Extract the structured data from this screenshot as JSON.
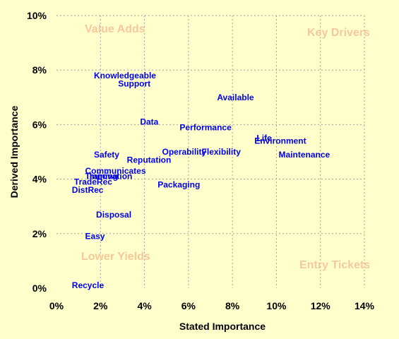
{
  "colors": {
    "background": "#ffffcc",
    "label": "#0000ee",
    "quadrant_label": "#f7c89c",
    "grid": "#a0a0a0"
  },
  "chart_data": {
    "type": "scatter",
    "xlabel": "Stated Importance",
    "ylabel": "Derived Importance",
    "xlim": [
      0,
      14
    ],
    "ylim": [
      0,
      10
    ],
    "x_ticks": [
      "0%",
      "2%",
      "4%",
      "6%",
      "8%",
      "10%",
      "12%",
      "14%"
    ],
    "y_ticks": [
      "0%",
      "2%",
      "4%",
      "6%",
      "8%",
      "10%"
    ],
    "grid": "dotted",
    "quadrant_labels": [
      "Value Adds",
      "Key Drivers",
      "Lower Yields",
      "Entry Tickets"
    ],
    "points": [
      {
        "label": "Knowledgeable",
        "x": 1.7,
        "y": 7.8
      },
      {
        "label": "Support",
        "x": 2.8,
        "y": 7.5
      },
      {
        "label": "Available",
        "x": 7.3,
        "y": 7.0
      },
      {
        "label": "Data",
        "x": 3.8,
        "y": 6.1
      },
      {
        "label": "Performance",
        "x": 5.6,
        "y": 5.9
      },
      {
        "label": "Life",
        "x": 9.1,
        "y": 5.5
      },
      {
        "label": "Environment",
        "x": 9.0,
        "y": 5.4
      },
      {
        "label": "Maintenance",
        "x": 10.1,
        "y": 4.9
      },
      {
        "label": "Operability",
        "x": 4.8,
        "y": 5.0
      },
      {
        "label": "Flexibility",
        "x": 6.6,
        "y": 5.0
      },
      {
        "label": "Safety",
        "x": 1.7,
        "y": 4.9
      },
      {
        "label": "Reputation",
        "x": 3.2,
        "y": 4.7
      },
      {
        "label": "Communicates",
        "x": 1.3,
        "y": 4.3
      },
      {
        "label": "Training",
        "x": 1.3,
        "y": 4.1
      },
      {
        "label": "Innovation",
        "x": 1.5,
        "y": 4.1
      },
      {
        "label": "TradeRec",
        "x": 0.8,
        "y": 3.9
      },
      {
        "label": "DistRec",
        "x": 0.7,
        "y": 3.6
      },
      {
        "label": "Packaging",
        "x": 4.6,
        "y": 3.8
      },
      {
        "label": "Disposal",
        "x": 1.8,
        "y": 2.7
      },
      {
        "label": "Easy",
        "x": 1.3,
        "y": 1.9
      },
      {
        "label": "Recycle",
        "x": 0.7,
        "y": 0.1
      }
    ]
  }
}
